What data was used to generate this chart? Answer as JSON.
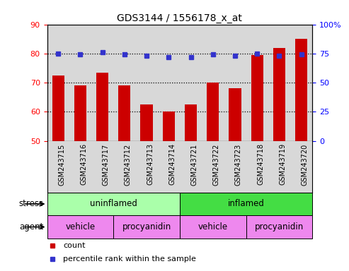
{
  "title": "GDS3144 / 1556178_x_at",
  "samples": [
    "GSM243715",
    "GSM243716",
    "GSM243717",
    "GSM243712",
    "GSM243713",
    "GSM243714",
    "GSM243721",
    "GSM243722",
    "GSM243723",
    "GSM243718",
    "GSM243719",
    "GSM243720"
  ],
  "counts": [
    72.5,
    69.0,
    73.5,
    69.0,
    62.5,
    60.0,
    62.5,
    70.0,
    68.0,
    79.5,
    82.0,
    85.0
  ],
  "percentile_ranks": [
    75,
    74,
    76,
    74,
    73,
    72,
    72,
    74,
    73,
    75,
    73,
    74
  ],
  "ylim_left": [
    50,
    90
  ],
  "ylim_right": [
    0,
    100
  ],
  "yticks_left": [
    50,
    60,
    70,
    80,
    90
  ],
  "yticks_right": [
    0,
    25,
    50,
    75,
    100
  ],
  "ytick_labels_right": [
    "0",
    "25",
    "50",
    "75",
    "100%"
  ],
  "bar_color": "#cc0000",
  "dot_color": "#3333cc",
  "bar_width": 0.55,
  "chart_bg": "#d8d8d8",
  "stress_uninflamed_color": "#aaffaa",
  "stress_inflamed_color": "#44dd44",
  "agent_color": "#ee88ee",
  "stress_row_label": "stress",
  "agent_row_label": "agent",
  "legend_count_label": "count",
  "legend_pct_label": "percentile rank within the sample",
  "background_color": "#ffffff"
}
